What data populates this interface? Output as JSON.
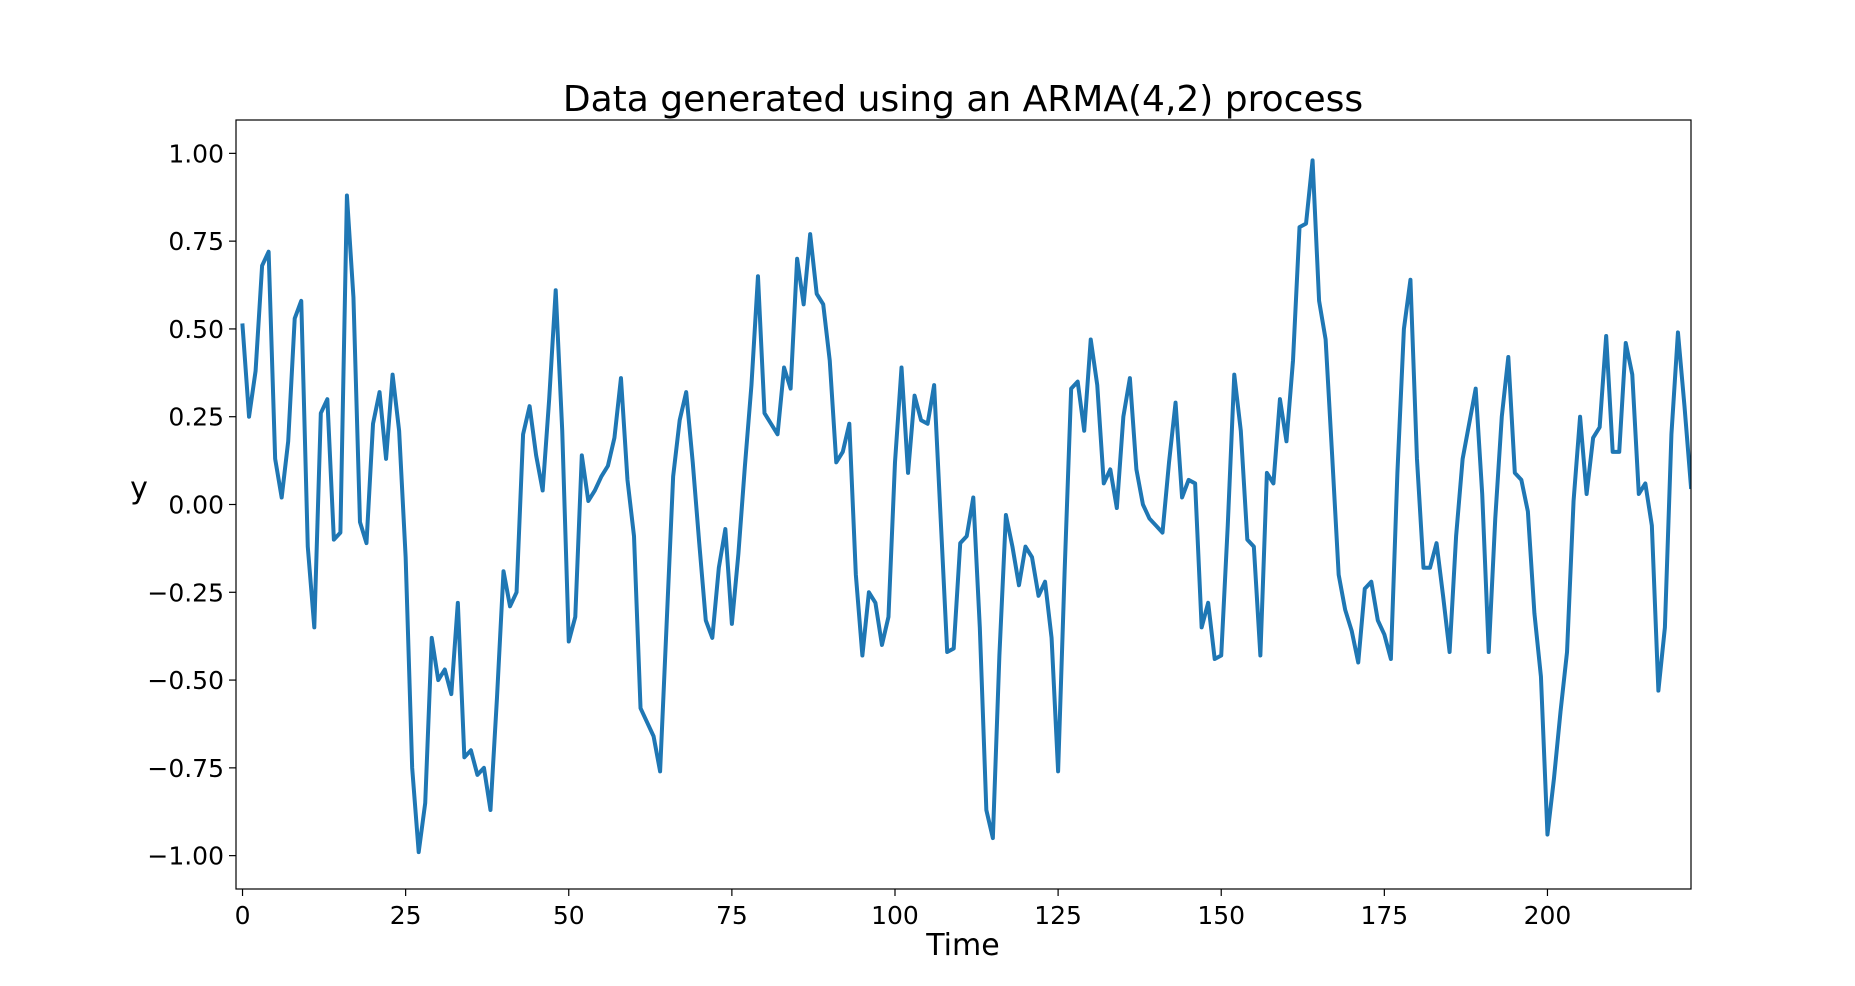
{
  "chart_data": {
    "type": "line",
    "title": "Data generated using an ARMA(4,2) process",
    "xlabel": "Time",
    "ylabel": "y",
    "xlim": [
      -1,
      222
    ],
    "ylim": [
      -1.095,
      1.095
    ],
    "x_ticks": [
      0,
      25,
      50,
      75,
      100,
      125,
      150,
      175,
      200
    ],
    "y_ticks": [
      1.0,
      0.75,
      0.5,
      0.25,
      0.0,
      -0.25,
      -0.5,
      -0.75,
      -1.0
    ],
    "x_tick_labels": [
      "0",
      "25",
      "50",
      "75",
      "100",
      "125",
      "150",
      "175",
      "200"
    ],
    "y_tick_labels": [
      "1.00",
      "0.75",
      "0.50",
      "0.25",
      "0.00",
      "−0.25",
      "−0.50",
      "−0.75",
      "−1.00"
    ],
    "grid": false,
    "legend": "none",
    "series": [
      {
        "color": "#1f77b4",
        "x_start": 0,
        "x_step": 1,
        "values": [
          0.51,
          0.25,
          0.38,
          0.68,
          0.72,
          0.13,
          0.02,
          0.18,
          0.53,
          0.58,
          -0.12,
          -0.35,
          0.26,
          0.3,
          -0.1,
          -0.08,
          0.88,
          0.59,
          -0.05,
          -0.11,
          0.23,
          0.32,
          0.13,
          0.37,
          0.21,
          -0.15,
          -0.75,
          -0.99,
          -0.85,
          -0.38,
          -0.5,
          -0.47,
          -0.54,
          -0.28,
          -0.72,
          -0.7,
          -0.77,
          -0.75,
          -0.87,
          -0.55,
          -0.19,
          -0.29,
          -0.25,
          0.2,
          0.28,
          0.14,
          0.04,
          0.3,
          0.61,
          0.21,
          -0.39,
          -0.32,
          0.14,
          0.01,
          0.04,
          0.08,
          0.11,
          0.19,
          0.36,
          0.07,
          -0.09,
          -0.58,
          -0.62,
          -0.66,
          -0.76,
          -0.34,
          0.08,
          0.24,
          0.32,
          0.12,
          -0.11,
          -0.33,
          -0.38,
          -0.18,
          -0.07,
          -0.34,
          -0.14,
          0.11,
          0.34,
          0.65,
          0.26,
          0.23,
          0.2,
          0.39,
          0.33,
          0.7,
          0.57,
          0.77,
          0.6,
          0.57,
          0.41,
          0.12,
          0.15,
          0.23,
          -0.2,
          -0.43,
          -0.25,
          -0.28,
          -0.4,
          -0.32,
          0.12,
          0.39,
          0.09,
          0.31,
          0.24,
          0.23,
          0.34,
          -0.04,
          -0.42,
          -0.41,
          -0.11,
          -0.09,
          0.02,
          -0.35,
          -0.87,
          -0.95,
          -0.43,
          -0.03,
          -0.12,
          -0.23,
          -0.12,
          -0.15,
          -0.26,
          -0.22,
          -0.38,
          -0.76,
          -0.19,
          0.33,
          0.35,
          0.21,
          0.47,
          0.34,
          0.06,
          0.1,
          -0.01,
          0.25,
          0.36,
          0.1,
          0.0,
          -0.04,
          -0.06,
          -0.08,
          0.12,
          0.29,
          0.02,
          0.07,
          0.06,
          -0.35,
          -0.28,
          -0.44,
          -0.43,
          -0.06,
          0.37,
          0.21,
          -0.1,
          -0.12,
          -0.43,
          0.09,
          0.06,
          0.3,
          0.18,
          0.41,
          0.79,
          0.8,
          0.98,
          0.58,
          0.47,
          0.14,
          -0.2,
          -0.3,
          -0.36,
          -0.45,
          -0.24,
          -0.22,
          -0.33,
          -0.37,
          -0.44,
          0.09,
          0.5,
          0.64,
          0.13,
          -0.18,
          -0.18,
          -0.11,
          -0.26,
          -0.42,
          -0.09,
          0.13,
          0.23,
          0.33,
          0.03,
          -0.42,
          -0.04,
          0.25,
          0.42,
          0.09,
          0.07,
          -0.02,
          -0.31,
          -0.49,
          -0.94,
          -0.78,
          -0.59,
          -0.42,
          0.01,
          0.25,
          0.03,
          0.19,
          0.22,
          0.48,
          0.15,
          0.15,
          0.46,
          0.37,
          0.03,
          0.06,
          -0.06,
          -0.53,
          -0.35,
          0.2,
          0.49,
          0.28,
          0.05
        ]
      }
    ]
  }
}
